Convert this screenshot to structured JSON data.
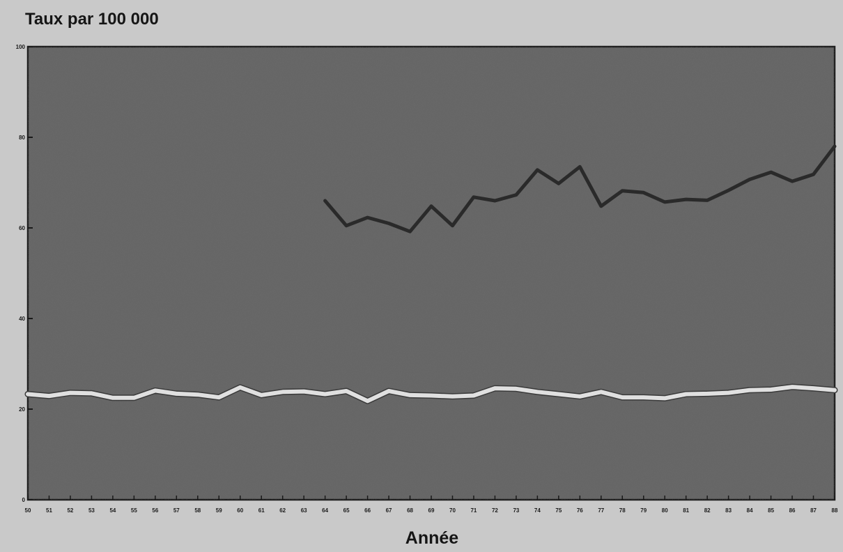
{
  "chart_data": {
    "type": "line",
    "title": "",
    "ylabel": "Taux par 100 000",
    "xlabel": "Année",
    "ylim": [
      0,
      100
    ],
    "yticks": [
      0,
      20,
      40,
      60,
      80,
      100
    ],
    "xticklabels": [
      "50",
      "51",
      "52",
      "53",
      "54",
      "55",
      "56",
      "57",
      "58",
      "59",
      "60",
      "61",
      "62",
      "63",
      "64",
      "65",
      "66",
      "67",
      "68",
      "69",
      "70",
      "71",
      "72",
      "73",
      "74",
      "75",
      "76",
      "77",
      "78",
      "79",
      "80",
      "81",
      "82",
      "83",
      "84",
      "85",
      "86",
      "87",
      "88"
    ],
    "grid": false,
    "series": [
      {
        "color": "#2a2a2a",
        "x": [
          "64",
          "65",
          "66",
          "67",
          "68",
          "69",
          "70",
          "71",
          "72",
          "73",
          "74",
          "75",
          "76",
          "77",
          "78",
          "79",
          "80",
          "81",
          "82",
          "83",
          "84",
          "85",
          "86",
          "87",
          "88"
        ],
        "values": [
          66,
          60.5,
          62.3,
          61,
          59.2,
          64.8,
          60.5,
          66.8,
          66,
          67.3,
          72.8,
          69.8,
          73.5,
          64.8,
          68.2,
          67.8,
          65.7,
          66.3,
          66.1,
          68.3,
          70.7,
          72.3,
          70.3,
          71.8,
          78
        ]
      },
      {
        "color": "#e0e0e0",
        "x": [
          "50",
          "51",
          "52",
          "53",
          "54",
          "55",
          "56",
          "57",
          "58",
          "59",
          "60",
          "61",
          "62",
          "63",
          "64",
          "65",
          "66",
          "67",
          "68",
          "69",
          "70",
          "71",
          "72",
          "73",
          "74",
          "75",
          "76",
          "77",
          "78",
          "79",
          "80",
          "81",
          "82",
          "83",
          "84",
          "85",
          "86",
          "87",
          "88"
        ],
        "values": [
          23.3,
          22.9,
          23.6,
          23.5,
          22.5,
          22.5,
          24.1,
          23.4,
          23.2,
          22.6,
          24.8,
          23.1,
          23.8,
          23.9,
          23.3,
          24,
          21.8,
          24,
          23.1,
          23,
          22.8,
          23,
          24.6,
          24.5,
          23.8,
          23.3,
          22.8,
          23.8,
          22.6,
          22.6,
          22.4,
          23.3,
          23.4,
          23.6,
          24.2,
          24.3,
          24.9,
          24.6,
          24.2
        ]
      }
    ]
  }
}
